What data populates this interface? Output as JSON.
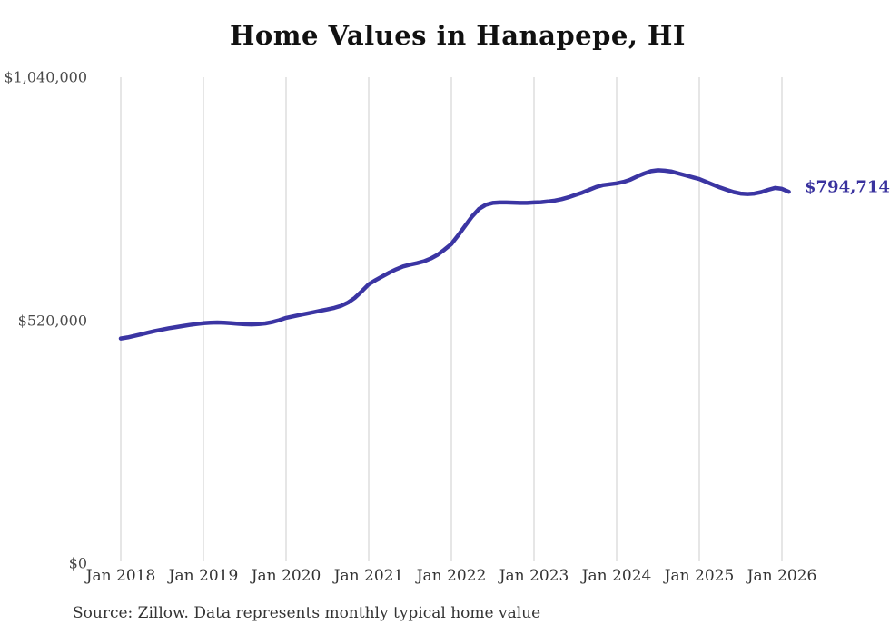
{
  "title": "Home Values in Hanapepe, HI",
  "source_note": "Source: Zillow. Data represents monthly typical home value",
  "end_label": "$794,714",
  "colors": {
    "line": "#3b35a3",
    "end_label": "#39329e",
    "gridline": "#cccccc",
    "y_tick_text": "#4a4a4a",
    "x_tick_text": "#333333",
    "title_text": "#111111",
    "background": "#ffffff"
  },
  "chart_data": {
    "type": "line",
    "title": "Home Values in Hanapepe, HI",
    "ylabel": "",
    "xlabel": "",
    "unit": "USD",
    "ylim": [
      0,
      1040000
    ],
    "grid": "vertical-yearly-only",
    "legend": "none",
    "x_start_month": "Jan 2018",
    "x_end_month": "Feb 2026",
    "x_tick_labels": [
      "Jan 2018",
      "Jan 2019",
      "Jan 2020",
      "Jan 2021",
      "Jan 2022",
      "Jan 2023",
      "Jan 2024",
      "Jan 2025",
      "Jan 2026"
    ],
    "x_tick_monthly_indices": [
      0,
      12,
      24,
      36,
      48,
      60,
      72,
      84,
      96
    ],
    "y_tick_labels": [
      "$0",
      "$520,000",
      "$1,040,000"
    ],
    "y_tick_values": [
      0,
      520000,
      1040000
    ],
    "last_value": 794714,
    "series": [
      {
        "name": "Monthly typical home value",
        "monthly_values": [
          481000,
          483200,
          486500,
          490000,
          493500,
          497000,
          500000,
          502800,
          505300,
          507600,
          509800,
          511800,
          513500,
          514600,
          515100,
          514800,
          513800,
          512500,
          511400,
          511000,
          511600,
          513200,
          516000,
          520000,
          525000,
          528200,
          531200,
          534200,
          537200,
          540200,
          543200,
          546500,
          551000,
          558000,
          568000,
          582000,
          597000,
          606000,
          614000,
          622000,
          629000,
          635000,
          639000,
          642000,
          646000,
          652000,
          660000,
          671000,
          683000,
          702000,
          722000,
          742000,
          758000,
          767000,
          771000,
          772000,
          772000,
          771500,
          771000,
          771000,
          772000,
          772500,
          774000,
          776000,
          779000,
          783000,
          788000,
          793000,
          799000,
          805000,
          809000,
          811000,
          813000,
          816000,
          821000,
          828000,
          834000,
          839000,
          841000,
          840000,
          838000,
          834000,
          830000,
          826000,
          822000,
          816000,
          810000,
          804000,
          799000,
          794000,
          791000,
          790000,
          791000,
          794000,
          799000,
          803000,
          801000,
          794714
        ]
      }
    ]
  }
}
